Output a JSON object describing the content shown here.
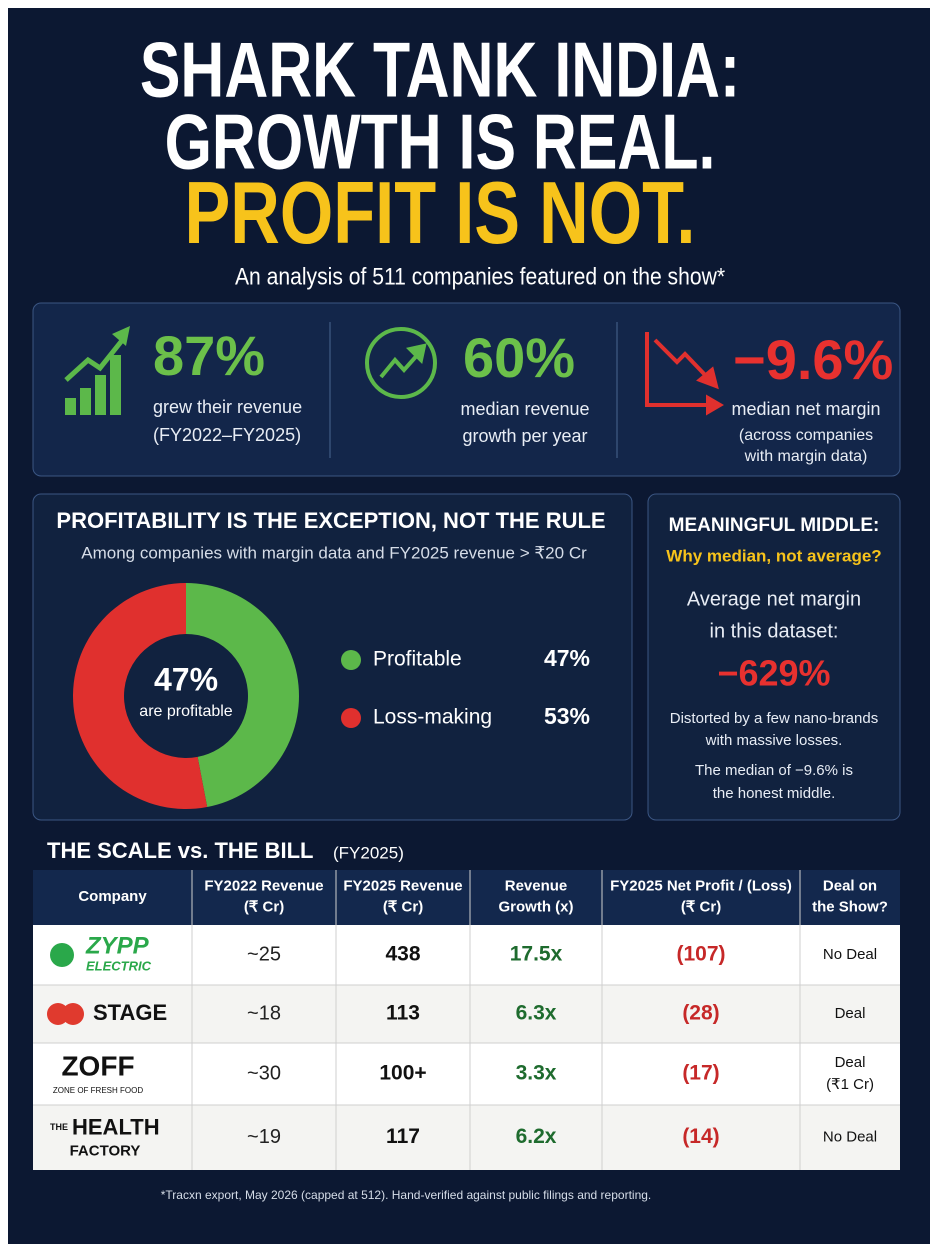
{
  "header": {
    "title_lines": [
      "SHARK TANK INDIA:",
      "GROWTH IS REAL."
    ],
    "title_highlight": "PROFIT IS NOT.",
    "subtitle": "An analysis of 511 companies featured on the show*"
  },
  "stats": [
    {
      "value": "87%",
      "label_lines": [
        "grew their revenue",
        "(FY2022–FY2025)"
      ]
    },
    {
      "value": "60%",
      "label_lines": [
        "median revenue",
        "growth per year"
      ]
    },
    {
      "value": "−9.6%",
      "label_lines": [
        "median net margin",
        "(across companies",
        "with margin data)"
      ]
    }
  ],
  "profitability": {
    "title": "PROFITABILITY IS THE EXCEPTION, NOT THE RULE",
    "subtitle": "Among companies with margin data and FY2025 revenue > ₹20 Cr",
    "center_value": "47%",
    "center_label": "are profitable",
    "segments": [
      {
        "name": "Profitable",
        "value": 47,
        "value_label": "47%",
        "color": "#5cb84a"
      },
      {
        "name": "Loss-making",
        "value": 53,
        "value_label": "53%",
        "color": "#e0302e"
      }
    ]
  },
  "sidebar": {
    "title": "MEANINGFUL MIDDLE:",
    "question": "Why median, not average?",
    "text_lines": [
      "Average net margin",
      "in this dataset:"
    ],
    "value": "−629%",
    "note_lines": [
      "Distorted by a few nano-brands",
      "with massive losses."
    ],
    "conclusion_lines": [
      "The median of −9.6% is",
      "the honest middle."
    ]
  },
  "table": {
    "title": "THE SCALE vs. THE BILL",
    "title_note": "(FY2025)",
    "columns": [
      [
        "Company"
      ],
      [
        "FY2022 Revenue",
        "(₹ Cr)"
      ],
      [
        "FY2025 Revenue",
        "(₹ Cr)"
      ],
      [
        "Revenue",
        "Growth (x)"
      ],
      [
        "FY2025 Net Profit / (Loss)",
        "(₹ Cr)"
      ],
      [
        "Deal on",
        "the Show?"
      ]
    ],
    "rows": [
      {
        "logo": [
          "ZYPP",
          "ELECTRIC"
        ],
        "fy2022": "~25",
        "fy2025": "438",
        "growth": "17.5x",
        "profit": "(107)",
        "deal": [
          "No Deal"
        ]
      },
      {
        "logo": [
          "STAGE"
        ],
        "fy2022": "~18",
        "fy2025": "113",
        "growth": "6.3x",
        "profit": "(28)",
        "deal": [
          "Deal"
        ]
      },
      {
        "logo": [
          "ZOFF",
          "ZONE OF FRESH FOOD"
        ],
        "fy2022": "~30",
        "fy2025": "100+",
        "growth": "3.3x",
        "profit": "(17)",
        "deal": [
          "Deal",
          "(₹1 Cr)"
        ]
      },
      {
        "logo": [
          "THE",
          "HEALTH",
          "FACTORY"
        ],
        "fy2022": "~19",
        "fy2025": "117",
        "growth": "6.2x",
        "profit": "(14)",
        "deal": [
          "No Deal"
        ]
      }
    ]
  },
  "footnote": "*Tracxn export, May 2026 (capped at 512). Hand-verified against public filings and reporting."
}
